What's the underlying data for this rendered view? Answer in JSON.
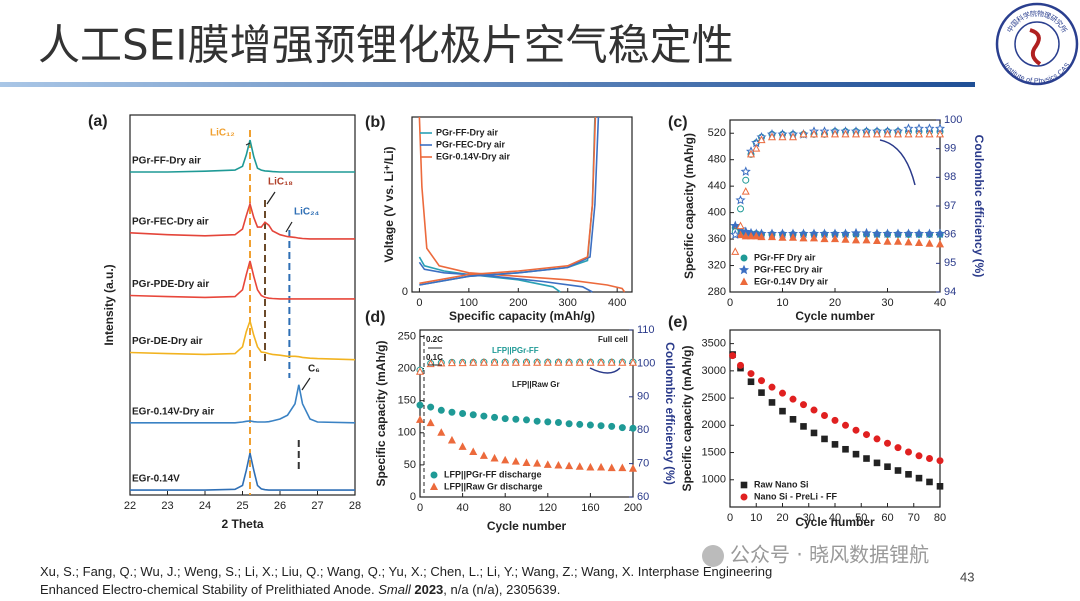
{
  "title": "人工SEI膜增强预锂化极片空气稳定性",
  "logo": {
    "top": "中国科学院物理研究所",
    "bottom": "Institute of Physics CAS"
  },
  "watermark": "公众号 · 晓风数据锂航",
  "page_number": "43",
  "citation": [
    "Xu, S.; Fang, Q.; Wu, J.; Weng, S.; Li, X.; Liu, Q.; Wang, Q.; Yu, X.; Chen, L.; Li, Y.; Wang, Z.; Wang, X. Interphase Engineering",
    "Enhanced Electro-chemical Stability of Prelithiated Anode.",
    "Small",
    "2023",
    ", n/a (n/a), 2305639."
  ],
  "chart_data": [
    {
      "type": "line",
      "panel_label": "(a)",
      "xlabel": "2 Theta",
      "ylabel": "Intensity (a.u.)",
      "xlim": [
        22,
        28
      ],
      "xticks": [
        22,
        23,
        24,
        25,
        26,
        27,
        28
      ],
      "ylim": [
        0,
        100
      ],
      "legend": "inline",
      "x": [
        22,
        23,
        24,
        24.8,
        25.0,
        25.1,
        25.2,
        25.3,
        25.4,
        25.5,
        25.6,
        25.7,
        25.8,
        26.0,
        26.2,
        26.4,
        26.5,
        26.6,
        26.8,
        27,
        28
      ],
      "series": [
        {
          "name": "PGr-FF-Dry air",
          "color": "#1f9a96",
          "values": [
            85,
            85,
            85.2,
            85.5,
            86.5,
            89.5,
            93.4,
            89,
            86,
            85.5,
            85.3,
            85.2,
            85.1,
            85,
            85,
            85,
            85,
            85,
            85,
            85,
            85
          ]
        },
        {
          "name": "PGr-FEC-Dry air",
          "color": "#e4453a",
          "values": [
            69,
            68.5,
            68.2,
            68.5,
            70,
            73.5,
            76.6,
            73,
            70.5,
            70.5,
            71.8,
            71,
            69.5,
            68.5,
            68,
            67.8,
            67.6,
            67.5,
            67.4,
            67.4,
            67.4
          ]
        },
        {
          "name": "PGr-PDE-Dry air",
          "color": "#e8473b",
          "values": [
            52.5,
            52.2,
            52,
            52.2,
            54,
            58,
            61.6,
            57.5,
            54,
            52.5,
            52,
            51.8,
            51.7,
            51.6,
            51.6,
            51.6,
            51.6,
            51.6,
            51.6,
            51.6,
            51.6
          ]
        },
        {
          "name": "PGr-DE-Dry air",
          "color": "#f2b320",
          "values": [
            37.5,
            37.2,
            37,
            37.2,
            39,
            43,
            45.8,
            42,
            39,
            37.6,
            37.5,
            37.2,
            37,
            36.8,
            36.5,
            36.5,
            36.4,
            36.2,
            36,
            35.9,
            35.6
          ]
        },
        {
          "name": "EGr-0.14V-Dry air",
          "color": "#3a82c4",
          "values": [
            19,
            19,
            19,
            19,
            19.2,
            19.4,
            19.5,
            19.3,
            19.2,
            19.2,
            19.2,
            19.3,
            19.5,
            20,
            21,
            24,
            29,
            24,
            20,
            19.2,
            19
          ]
        },
        {
          "name": "EGr-0.14V",
          "color": "#2f6fb5",
          "values": [
            1.3,
            1.3,
            1.3,
            1.5,
            2.5,
            6.5,
            11,
            6.5,
            2.5,
            1.6,
            1.4,
            1.3,
            1.3,
            1.3,
            1.3,
            1.3,
            1.3,
            1.3,
            1.3,
            1.3,
            1.3
          ]
        }
      ],
      "reference_lines": [
        {
          "x": 25.2,
          "color": "#f0a030"
        },
        {
          "x": 25.6,
          "color": "#6b4a2a"
        },
        {
          "x": 26.25,
          "color": "#2f6fb5"
        },
        {
          "x": 26.5,
          "color": "#333333"
        }
      ],
      "annotations": [
        "LiC₁₂",
        "LiC₁₈",
        "LiC₂₄",
        "C₆"
      ]
    },
    {
      "type": "line",
      "panel_label": "(b)",
      "xlabel": "Specific capacity (mAh/g)",
      "ylabel": "Voltage (V vs. Li⁺/Li)",
      "xlim": [
        -15,
        430
      ],
      "xticks": [
        0,
        100,
        200,
        300,
        400
      ],
      "ylim": [
        0,
        1.0
      ],
      "yticks": [
        0
      ],
      "legend": "upper left",
      "series": [
        {
          "name": "PGr-FF-Dry air",
          "color": "#2aa0b5",
          "x": [
            0,
            10,
            50,
            100,
            200,
            270,
            285
          ],
          "values": [
            0.2,
            0.15,
            0.12,
            0.1,
            0.07,
            0.03,
            0
          ]
        },
        {
          "name": "PGr-FEC-Dry air",
          "color": "#3c6fc2",
          "x": [
            0,
            10,
            50,
            150,
            250,
            330,
            350
          ],
          "values": [
            0.17,
            0.13,
            0.11,
            0.09,
            0.06,
            0.03,
            0
          ]
        },
        {
          "name": "EGr-0.14V-Dry air",
          "color": "#ec6a3c",
          "x": [
            0,
            5,
            15,
            40,
            100,
            200,
            300,
            380,
            410,
            415
          ],
          "values": [
            1.0,
            0.6,
            0.25,
            0.15,
            0.11,
            0.09,
            0.07,
            0.04,
            0.02,
            0
          ]
        },
        {
          "color": "#2aa0b5",
          "x": [
            0,
            100,
            200,
            300,
            340,
            350,
            355
          ],
          "values": [
            0.04,
            0.09,
            0.11,
            0.14,
            0.18,
            0.5,
            1.0
          ]
        },
        {
          "color": "#3c6fc2",
          "x": [
            0,
            100,
            200,
            300,
            345,
            355,
            362
          ],
          "values": [
            0.04,
            0.09,
            0.11,
            0.14,
            0.2,
            0.5,
            1.0
          ]
        },
        {
          "color": "#ec6a3c",
          "x": [
            0,
            100,
            200,
            300,
            340,
            350,
            356
          ],
          "values": [
            0.05,
            0.1,
            0.12,
            0.15,
            0.2,
            0.5,
            1.0
          ]
        }
      ]
    },
    {
      "type": "scatter",
      "panel_label": "(c)",
      "xlabel": "Cycle number",
      "ylabel": "Specific capacity (mAh/g)",
      "y2label": "Coulombic efficiency (%)",
      "xlim": [
        0,
        40
      ],
      "xticks": [
        0,
        10,
        20,
        30,
        40
      ],
      "ylim": [
        280,
        540
      ],
      "yticks": [
        280,
        320,
        360,
        400,
        440,
        480,
        520
      ],
      "y2lim": [
        94,
        100
      ],
      "y2ticks": [
        94,
        95,
        96,
        97,
        98,
        99,
        100
      ],
      "legend": "lower left",
      "x": [
        1,
        2,
        3,
        4,
        5,
        6,
        8,
        10,
        12,
        14,
        16,
        18,
        20,
        22,
        24,
        26,
        28,
        30,
        32,
        34,
        36,
        38,
        40
      ],
      "series": [
        {
          "name": "PGr-FF Dry air",
          "color": "#1f9a96",
          "marker": "circle",
          "filled": true,
          "values": [
            377,
            372,
            369,
            368,
            368,
            367,
            367,
            367,
            367,
            367,
            367,
            367,
            367,
            367,
            367,
            367,
            367,
            367,
            367,
            367,
            367,
            367,
            367
          ]
        },
        {
          "name": "PGr-FEC Dry air",
          "color": "#3c6fc2",
          "marker": "star",
          "filled": true,
          "values": [
            380,
            375,
            371,
            369,
            368,
            368,
            368,
            368,
            368,
            368,
            368,
            368,
            368,
            368,
            369,
            369,
            368,
            368,
            368,
            368,
            368,
            368,
            368
          ]
        },
        {
          "name": "EGr-0.14V Dry air",
          "color": "#ec6a3c",
          "marker": "triangle",
          "filled": true,
          "values": [
            372,
            366,
            364,
            364,
            364,
            363,
            363,
            362,
            362,
            361,
            361,
            360,
            360,
            359,
            358,
            358,
            357,
            356,
            356,
            355,
            354,
            353,
            352
          ]
        },
        {
          "color": "#1f9a96",
          "marker": "circle",
          "filled": false,
          "axis": "y2",
          "values": [
            96.1,
            96.9,
            97.9,
            98.8,
            99.2,
            99.4,
            99.5,
            99.5,
            99.5,
            99.5,
            99.5,
            99.5,
            99.6,
            99.6,
            99.6,
            99.6,
            99.6,
            99.6,
            99.6,
            99.6,
            99.6,
            99.6,
            99.6
          ]
        },
        {
          "color": "#3c6fc2",
          "marker": "star",
          "filled": false,
          "axis": "y2",
          "values": [
            96.0,
            97.2,
            98.2,
            98.9,
            99.2,
            99.4,
            99.5,
            99.5,
            99.5,
            99.5,
            99.6,
            99.6,
            99.6,
            99.6,
            99.6,
            99.6,
            99.6,
            99.6,
            99.6,
            99.7,
            99.7,
            99.7,
            99.7
          ]
        },
        {
          "color": "#ec6a3c",
          "marker": "triangle",
          "filled": false,
          "axis": "y2",
          "values": [
            95.4,
            96.3,
            97.5,
            98.8,
            99.0,
            99.3,
            99.4,
            99.4,
            99.4,
            99.5,
            99.5,
            99.5,
            99.5,
            99.5,
            99.5,
            99.5,
            99.5,
            99.5,
            99.5,
            99.5,
            99.5,
            99.5,
            99.5
          ]
        }
      ]
    },
    {
      "type": "scatter",
      "panel_label": "(d)",
      "xlabel": "Cycle number",
      "ylabel": "Specific capacity (mAh/g)",
      "y2label": "Coulombic efficiency (%)",
      "xlim": [
        0,
        200
      ],
      "xticks": [
        0,
        40,
        80,
        120,
        160,
        200
      ],
      "ylim": [
        0,
        260
      ],
      "yticks": [
        0,
        50,
        100,
        150,
        200,
        250
      ],
      "y2lim": [
        60,
        110
      ],
      "y2ticks": [
        60,
        70,
        80,
        90,
        100,
        110
      ],
      "legend": "lower left",
      "x": [
        0,
        10,
        20,
        30,
        40,
        50,
        60,
        70,
        80,
        90,
        100,
        110,
        120,
        130,
        140,
        150,
        160,
        170,
        180,
        190,
        200
      ],
      "series": [
        {
          "name": "LFP||PGr-FF discharge",
          "color": "#1f9a96",
          "marker": "circle",
          "filled": true,
          "values": [
            143,
            140,
            135,
            132,
            130,
            128,
            126,
            124,
            122,
            121,
            120,
            118,
            117,
            116,
            114,
            113,
            112,
            111,
            110,
            108,
            107
          ]
        },
        {
          "name": "LFP||Raw Gr discharge",
          "color": "#ec6a3c",
          "marker": "triangle",
          "filled": true,
          "values": [
            120,
            115,
            100,
            88,
            78,
            70,
            64,
            60,
            57,
            55,
            53,
            52,
            50,
            49,
            48,
            47,
            46,
            46,
            45,
            45,
            44
          ]
        },
        {
          "color": "#1f9a96",
          "marker": "circle",
          "filled": false,
          "axis": "y2",
          "values": [
            98,
            100,
            100.2,
            100.3,
            100.3,
            100.3,
            100.4,
            100.4,
            100.4,
            100.4,
            100.4,
            100.4,
            100.4,
            100.4,
            100.4,
            100.4,
            100.4,
            100.4,
            100.4,
            100.4,
            100.4
          ]
        },
        {
          "color": "#ec6a3c",
          "marker": "triangle",
          "filled": false,
          "axis": "y2",
          "values": [
            97.5,
            99.8,
            100,
            100.1,
            100.1,
            100.2,
            100.2,
            100.2,
            100.2,
            100.2,
            100.2,
            100.2,
            100.2,
            100.2,
            100.2,
            100.2,
            100.2,
            100.2,
            100.2,
            100.2,
            100.2
          ]
        }
      ],
      "annotations": [
        "0.2C",
        "0.1C",
        "Full cell",
        "LFP||PGr-FF",
        "LFP||Raw Gr"
      ]
    },
    {
      "type": "scatter",
      "panel_label": "(e)",
      "xlabel": "Cycle number",
      "ylabel": "Specific capacity (mAh/g)",
      "xlim": [
        0,
        80
      ],
      "xticks": [
        0,
        10,
        20,
        30,
        40,
        50,
        60,
        70,
        80
      ],
      "ylim": [
        500,
        3750
      ],
      "yticks": [
        1000,
        1500,
        2000,
        2500,
        3000,
        3500
      ],
      "legend": "lower left",
      "x": [
        1,
        4,
        8,
        12,
        16,
        20,
        24,
        28,
        32,
        36,
        40,
        44,
        48,
        52,
        56,
        60,
        64,
        68,
        72,
        76,
        80
      ],
      "series": [
        {
          "name": "Raw Nano Si",
          "color": "#222222",
          "marker": "square",
          "filled": true,
          "values": [
            3300,
            3050,
            2800,
            2600,
            2420,
            2260,
            2110,
            1980,
            1860,
            1750,
            1650,
            1560,
            1470,
            1390,
            1310,
            1240,
            1170,
            1100,
            1030,
            960,
            880
          ]
        },
        {
          "name": "Nano Si - PreLi - FF",
          "color": "#e02020",
          "marker": "circle",
          "filled": true,
          "values": [
            3280,
            3100,
            2950,
            2820,
            2700,
            2590,
            2480,
            2380,
            2280,
            2180,
            2090,
            2000,
            1910,
            1830,
            1750,
            1670,
            1590,
            1510,
            1440,
            1390,
            1350
          ]
        }
      ]
    }
  ]
}
